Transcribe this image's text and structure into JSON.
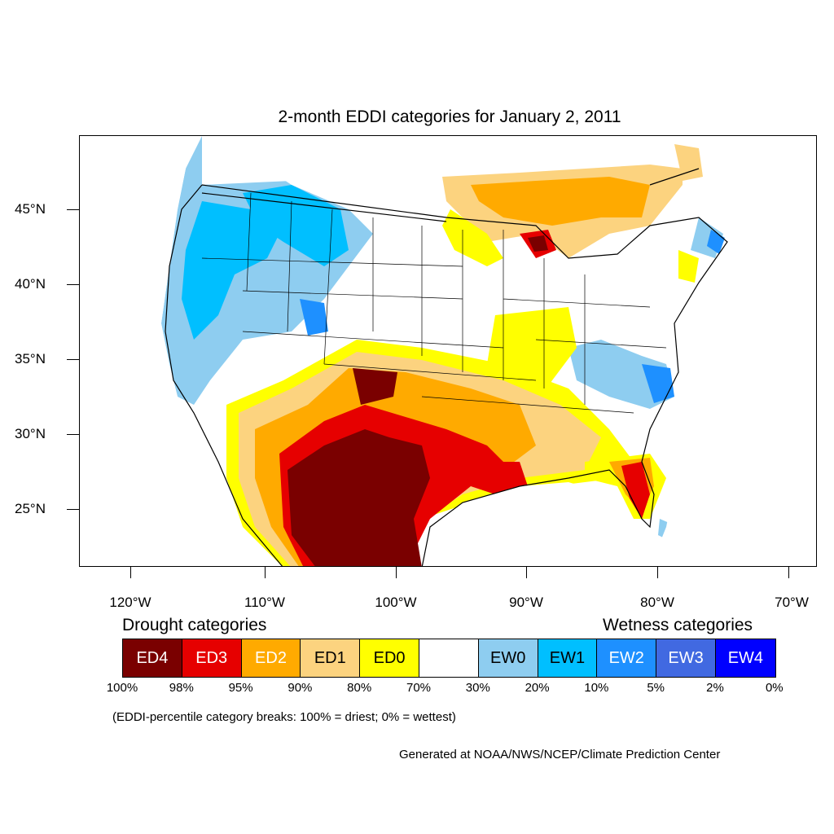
{
  "map": {
    "title": "2-month EDDI categories for January 2, 2011",
    "lat_labels": [
      "45°N",
      "40°N",
      "35°N",
      "30°N",
      "25°N"
    ],
    "lon_labels": [
      "120°W",
      "110°W",
      "100°W",
      "90°W",
      "80°W",
      "70°W"
    ]
  },
  "legend": {
    "drought_heading": "Drought categories",
    "wetness_heading": "Wetness categories",
    "categories": [
      {
        "label": "ED4",
        "color": "#7a0000",
        "text_color": "#ffffff"
      },
      {
        "label": "ED3",
        "color": "#e60000",
        "text_color": "#ffffff"
      },
      {
        "label": "ED2",
        "color": "#ffaa00",
        "text_color": "#ffffff"
      },
      {
        "label": "ED1",
        "color": "#fcd37f",
        "text_color": "#000000"
      },
      {
        "label": "ED0",
        "color": "#ffff00",
        "text_color": "#000000"
      },
      {
        "label": "",
        "color": "#ffffff",
        "text_color": "#000000"
      },
      {
        "label": "EW0",
        "color": "#8ecdf0",
        "text_color": "#000000"
      },
      {
        "label": "EW1",
        "color": "#00bfff",
        "text_color": "#000000"
      },
      {
        "label": "EW2",
        "color": "#1e90ff",
        "text_color": "#ffffff"
      },
      {
        "label": "EW3",
        "color": "#4169e1",
        "text_color": "#ffffff"
      },
      {
        "label": "EW4",
        "color": "#0000ff",
        "text_color": "#ffffff"
      }
    ],
    "breaks": [
      "100%",
      "98%",
      "95%",
      "90%",
      "80%",
      "70%",
      "30%",
      "20%",
      "10%",
      "5%",
      "2%",
      "0%"
    ]
  },
  "note": "(EDDI-percentile category breaks: 100% = driest; 0% = wettest)",
  "credit": "Generated at NOAA/NWS/NCEP/Climate Prediction Center"
}
